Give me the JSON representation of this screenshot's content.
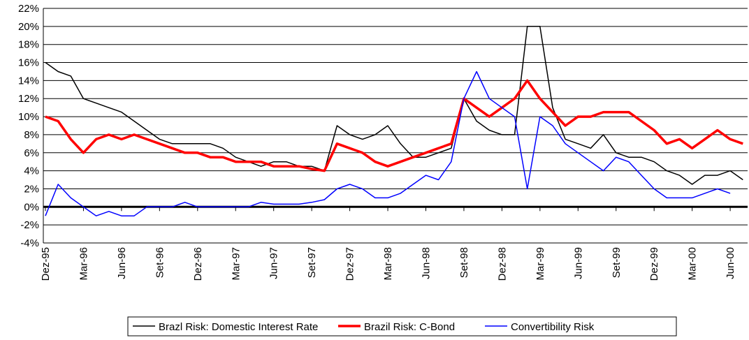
{
  "chart_data": {
    "type": "line",
    "categories": [
      "Dez-95",
      null,
      null,
      "Mar-96",
      null,
      null,
      "Jun-96",
      null,
      null,
      "Set-96",
      null,
      null,
      "Dez-96",
      null,
      null,
      "Mar-97",
      null,
      null,
      "Jun-97",
      null,
      null,
      "Set-97",
      null,
      null,
      "Dez-97",
      null,
      null,
      "Mar-98",
      null,
      null,
      "Jun-98",
      null,
      null,
      "Set-98",
      null,
      null,
      "Dez-98",
      null,
      null,
      "Mar-99",
      null,
      null,
      "Jun-99",
      null,
      null,
      "Set-99",
      null,
      null,
      "Dez-99",
      null,
      null,
      "Mar-00",
      null,
      null,
      "Jun-00",
      null
    ],
    "series": [
      {
        "name": "Brazl Risk: Domestic Interest Rate",
        "color": "#000000",
        "values": [
          16,
          15,
          14.5,
          12,
          11.5,
          11,
          10.5,
          9.5,
          8.5,
          7.5,
          7,
          7,
          7,
          7,
          6.5,
          5.5,
          5,
          4.5,
          5,
          5,
          4.5,
          4.5,
          4,
          9,
          8,
          7.5,
          8,
          9,
          7,
          5.5,
          5.5,
          6,
          6.5,
          12,
          9.5,
          8.5,
          8,
          8,
          20,
          20,
          11,
          7.5,
          7,
          6.5,
          8,
          6,
          5.5,
          5.5,
          5,
          4,
          3.5,
          2.5,
          3.5,
          3.5,
          4,
          3
        ]
      },
      {
        "name": "Brazil Risk: C-Bond",
        "color": "#ff0000",
        "values": [
          10,
          9.5,
          7.5,
          6,
          7.5,
          8,
          7.5,
          8,
          7.5,
          7,
          6.5,
          6,
          6,
          5.5,
          5.5,
          5,
          5,
          5,
          4.5,
          4.5,
          4.5,
          4.2,
          4,
          7,
          6.5,
          6,
          5,
          4.5,
          5,
          5.5,
          6,
          6.5,
          7,
          12,
          11,
          10,
          11,
          12,
          14,
          12,
          10.5,
          9,
          10,
          10,
          10.5,
          10.5,
          10.5,
          9.5,
          8.5,
          7,
          7.5,
          6.5,
          7.5,
          8.5,
          7.5,
          7
        ]
      },
      {
        "name": "Convertibility Risk",
        "color": "#0000ff",
        "values": [
          -1,
          2.5,
          1,
          0,
          -1,
          -0.5,
          -1,
          -1,
          0,
          0,
          0,
          0.5,
          0,
          0,
          0,
          0,
          0,
          0.5,
          0.3,
          0.3,
          0.3,
          0.5,
          0.8,
          2,
          2.5,
          2,
          1,
          1,
          1.5,
          2.5,
          3.5,
          3,
          5,
          12,
          15,
          12,
          11,
          10,
          2,
          10,
          9,
          7,
          6,
          5,
          4,
          5.5,
          5,
          3.5,
          2,
          1,
          1,
          1,
          1.5,
          2,
          1.5,
          null
        ]
      }
    ],
    "ylim": [
      -4,
      22
    ],
    "yticks": [
      {
        "value": -4,
        "label": "-4%"
      },
      {
        "value": -2,
        "label": "-2%"
      },
      {
        "value": 0,
        "label": "0%"
      },
      {
        "value": 2,
        "label": "2%"
      },
      {
        "value": 4,
        "label": "4%"
      },
      {
        "value": 6,
        "label": "6%"
      },
      {
        "value": 8,
        "label": "8%"
      },
      {
        "value": 10,
        "label": "10%"
      },
      {
        "value": 12,
        "label": "12%"
      },
      {
        "value": 14,
        "label": "14%"
      },
      {
        "value": 16,
        "label": "16%"
      },
      {
        "value": 18,
        "label": "18%"
      },
      {
        "value": 20,
        "label": "20%"
      },
      {
        "value": 22,
        "label": "22%"
      }
    ],
    "grid": true
  }
}
